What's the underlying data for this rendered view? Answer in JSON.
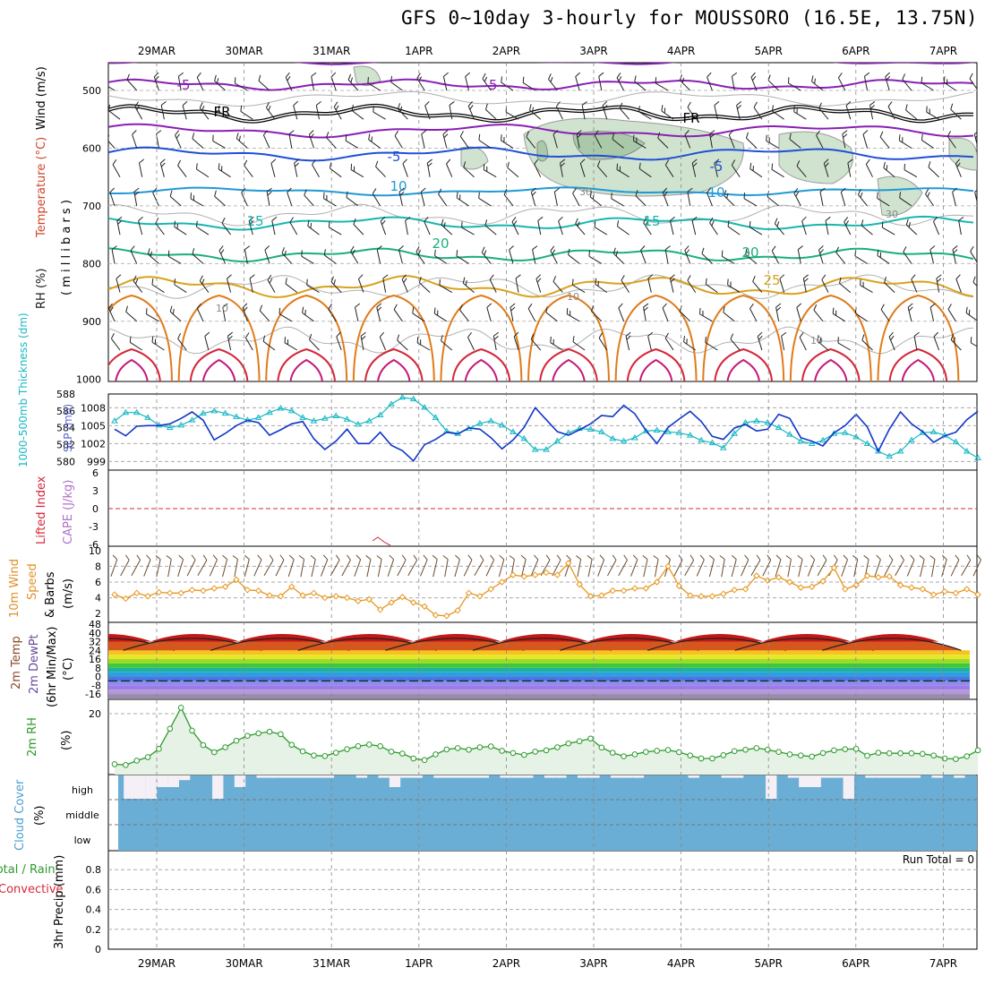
{
  "title": "GFS 0~10day 3-hourly for MOUSSORO (16.5E, 13.75N)",
  "dates": [
    "29MAR",
    "30MAR",
    "31MAR",
    "1APR",
    "2APR",
    "3APR",
    "4APR",
    "5APR",
    "6APR",
    "7APR"
  ],
  "colors": {
    "temp_purple": "#8a1fb5",
    "freezing": "#000000",
    "temp_blue": "#1f4fd6",
    "temp_lightblue": "#1f9ad6",
    "temp_cyan": "#18b6b0",
    "temp_green": "#18b07a",
    "temp_gold": "#d9a21c",
    "temp_orange": "#e07b1a",
    "temp_red": "#d4283a",
    "temp_magenta": "#c4187a",
    "rh_fill": "#cfe3cf",
    "thickness": "#17b8c4",
    "slp": "#1236c8",
    "wind_speed": "#e8961c",
    "barb": "#6b4a2a",
    "rh2m": "#2c9a2c",
    "cloud": "#6aaed6",
    "li": "#d4283a",
    "cape": "#b070c8"
  },
  "panels": {
    "upper_air": {
      "ylabel_rh": "RH (%)",
      "ylabel_temp": "Temperature (°C)",
      "ylabel_wind": "Wind (m/s)",
      "ylabel_unit": "( m i l l i b a r s )",
      "yticks": [
        500,
        600,
        700,
        800,
        900,
        1000
      ],
      "isotherm_labels": [
        {
          "text": "-5"
        },
        {
          "text": "-5"
        },
        {
          "text": "FR"
        },
        {
          "text": "FR"
        },
        {
          "text": "-5"
        },
        {
          "text": "-5"
        },
        {
          "text": "10"
        },
        {
          "text": "10"
        },
        {
          "text": "15"
        },
        {
          "text": "15"
        },
        {
          "text": "20"
        },
        {
          "text": "20"
        },
        {
          "text": "25"
        },
        {
          "text": "30"
        },
        {
          "text": "30"
        },
        {
          "text": "10"
        },
        {
          "text": "10"
        },
        {
          "text": "10"
        }
      ]
    },
    "thickness_slp": {
      "ylabel_left": "1000-500mb Thickness (dm)",
      "ylabel_right": "SLP (mb)",
      "left_ticks": [
        580,
        582,
        584,
        586,
        588
      ],
      "right_ticks": [
        999,
        1002,
        1005,
        1008
      ]
    },
    "stability": {
      "ylabel_li": "Lifted Index",
      "ylabel_cape": "CAPE (J/kg)",
      "ticks": [
        "6",
        "3",
        "0",
        "-3",
        "-6"
      ]
    },
    "wind10m": {
      "ylabel": "10m Wind Speed & Barbs (m/s)",
      "ylabel_a": "10m Wind",
      "ylabel_b": "Speed",
      "ylabel_c": "& Barbs",
      "ylabel_unit": "(m/s)",
      "ticks": [
        2,
        4,
        6,
        8,
        10
      ]
    },
    "temp2m": {
      "ylabel_a": "2m Temp",
      "ylabel_b": "2m DewPt",
      "ylabel_c": "(6hr Min/Max)",
      "ylabel_unit": "(°C)",
      "ticks": [
        "48",
        "40",
        "32",
        "24",
        "16",
        "8",
        "0",
        "-8",
        "-16"
      ]
    },
    "rh2m": {
      "ylabel": "2m RH",
      "ylabel_unit": "(%)",
      "ticks": [
        20
      ]
    },
    "cloud": {
      "ylabel": "Cloud Cover",
      "ylabel_unit": "(%)",
      "levels": [
        "high",
        "middle",
        "low"
      ]
    },
    "precip": {
      "ylabel_a": "Total / Rain",
      "ylabel_b": "Convective",
      "ylabel_c": "3hr Precip (mm)",
      "ticks": [
        "0",
        "0.2",
        "0.4",
        "0.6",
        "0.8"
      ],
      "run_total": "Run Total = 0"
    }
  },
  "chart_data": [
    {
      "type": "line",
      "title": "1000-500mb Thickness (dm) / SLP (mb)",
      "x": [
        "28MAR12",
        "28MAR15",
        "28MAR18",
        "28MAR21",
        "29MAR00",
        "29MAR03",
        "29MAR06",
        "29MAR09",
        "29MAR12",
        "29MAR15",
        "29MAR18",
        "29MAR21",
        "30MAR00",
        "30MAR03",
        "30MAR06",
        "30MAR09",
        "30MAR12",
        "30MAR15",
        "30MAR18",
        "30MAR21",
        "31MAR00",
        "31MAR03",
        "31MAR06",
        "31MAR09",
        "31MAR12",
        "31MAR15",
        "31MAR18",
        "31MAR21",
        "1APR00",
        "1APR03",
        "1APR06",
        "1APR09",
        "1APR12",
        "1APR15",
        "1APR18",
        "1APR21",
        "2APR00",
        "2APR03",
        "2APR06",
        "2APR09",
        "2APR12",
        "2APR15",
        "2APR18",
        "2APR21",
        "3APR00",
        "3APR03",
        "3APR06",
        "3APR09",
        "3APR12",
        "3APR15",
        "3APR18",
        "3APR21",
        "4APR00",
        "4APR03",
        "4APR06",
        "4APR09",
        "4APR12",
        "4APR15",
        "4APR18",
        "4APR21",
        "5APR00",
        "5APR03",
        "5APR06",
        "5APR09",
        "5APR12",
        "5APR15",
        "5APR18",
        "5APR21",
        "6APR00",
        "6APR03",
        "6APR06",
        "6APR09",
        "6APR12",
        "6APR15",
        "6APR18",
        "6APR21",
        "7APR00",
        "7APR03",
        "7APR06"
      ],
      "series": [
        {
          "name": "1000-500mb Thickness (dm)",
          "values": [
            584.8,
            585.8,
            585.8,
            585.2,
            584.3,
            584.0,
            584.3,
            584.9,
            585.7,
            586.0,
            585.7,
            585.3,
            584.9,
            585.2,
            585.8,
            586.3,
            586.0,
            585.2,
            584.8,
            585.1,
            585.4,
            585.0,
            584.4,
            584.8,
            585.5,
            586.8,
            587.6,
            587.4,
            586.4,
            585.2,
            583.6,
            583.3,
            583.9,
            584.5,
            584.8,
            584.3,
            583.5,
            582.7,
            581.4,
            581.4,
            582.4,
            583.4,
            583.9,
            583.8,
            583.5,
            582.7,
            582.4,
            582.8,
            583.6,
            583.7,
            583.5,
            583.4,
            583.1,
            582.5,
            582.2,
            581.6,
            583.3,
            584.6,
            584.8,
            584.6,
            584.0,
            583.2,
            582.4,
            582.1,
            582.5,
            583.3,
            583.4,
            582.9,
            582.1,
            581.2,
            580.6,
            581.2,
            582.5,
            583.4,
            583.5,
            583.1,
            582.3,
            581.2,
            580.4
          ]
        },
        {
          "name": "SLP (mb)",
          "values": [
            1004.4,
            1003.3,
            1004.9,
            1005.0,
            1005.0,
            1005.3,
            1006.2,
            1007.3,
            1005.9,
            1002.6,
            1003.7,
            1005.0,
            1005.9,
            1005.5,
            1003.4,
            1004.3,
            1005.3,
            1005.7,
            1002.8,
            1001.0,
            1002.4,
            1004.4,
            1002.0,
            1002.0,
            1003.9,
            1001.7,
            1000.8,
            999.1,
            1001.8,
            1002.7,
            1003.9,
            1003.6,
            1004.6,
            1004.4,
            1003.0,
            1001.1,
            1002.6,
            1004.7,
            1008.0,
            1006.0,
            1004.0,
            1003.4,
            1004.3,
            1005.3,
            1006.7,
            1006.5,
            1008.4,
            1007.0,
            1004.2,
            1002.0,
            1004.7,
            1006.1,
            1007.4,
            1005.7,
            1003.2,
            1002.7,
            1004.6,
            1005.2,
            1004.1,
            1004.4,
            1006.9,
            1006.2,
            1003.0,
            1002.4,
            1001.6,
            1003.8,
            1005.0,
            1006.9,
            1004.8,
            1000.7,
            1004.4,
            1007.3,
            1005.3,
            1004.0,
            1002.2,
            1003.3,
            1003.9,
            1006.0,
            1007.4
          ]
        }
      ]
    },
    {
      "type": "line",
      "title": "10m Wind Speed (m/s)",
      "series": [
        {
          "name": "10m Wind Speed",
          "values": [
            4.4,
            3.9,
            4.6,
            4.2,
            4.7,
            4.6,
            4.6,
            5.0,
            4.9,
            5.2,
            5.4,
            6.3,
            5.0,
            4.9,
            4.3,
            4.2,
            5.4,
            4.3,
            4.6,
            4.0,
            4.2,
            4.0,
            3.6,
            3.8,
            2.5,
            3.4,
            4.1,
            3.4,
            2.9,
            1.8,
            1.7,
            2.4,
            4.6,
            4.2,
            5.1,
            6.0,
            6.9,
            6.7,
            6.9,
            7.2,
            6.9,
            8.4,
            5.7,
            4.2,
            4.3,
            4.9,
            4.9,
            5.2,
            5.2,
            6.0,
            8.0,
            5.5,
            4.3,
            4.2,
            4.2,
            4.5,
            5.0,
            5.1,
            6.8,
            6.2,
            6.6,
            6.0,
            5.3,
            5.4,
            6.1,
            7.8,
            5.1,
            5.6,
            6.8,
            6.6,
            6.7,
            5.6,
            5.3,
            5.1,
            4.4,
            4.8,
            4.6,
            5.1,
            4.4
          ]
        }
      ]
    },
    {
      "type": "area",
      "title": "2m RH (%)",
      "series": [
        {
          "name": "2m RH",
          "values": [
            1.5,
            1.2,
            2.8,
            4.1,
            7.1,
            14.5,
            22.2,
            13.8,
            8.5,
            5.9,
            7.7,
            10.1,
            11.9,
            12.8,
            13.4,
            12.5,
            8.6,
            6.2,
            4.7,
            4.5,
            5.7,
            7.0,
            8.1,
            8.7,
            8.1,
            6.1,
            5.4,
            3.6,
            3.0,
            5.1,
            6.9,
            7.4,
            6.8,
            7.7,
            8.0,
            6.4,
            5.6,
            4.9,
            6.1,
            6.6,
            7.7,
            9.1,
            9.9,
            10.9,
            7.6,
            5.7,
            4.4,
            5.1,
            6.0,
            6.4,
            6.7,
            5.9,
            4.7,
            3.6,
            3.6,
            4.8,
            6.3,
            6.8,
            7.4,
            6.8,
            6.0,
            5.1,
            4.7,
            4.3,
            5.6,
            6.6,
            7.0,
            7.1,
            4.6,
            5.7,
            5.5,
            5.5,
            5.5,
            5.3,
            4.7,
            3.6,
            3.4,
            4.4,
            6.6
          ]
        }
      ]
    },
    {
      "type": "bar",
      "title": "Cloud Cover (%) high",
      "series": [
        {
          "name": "high cloud",
          "values": [
            0,
            50,
            50,
            50,
            25,
            25,
            10,
            0,
            0,
            50,
            0,
            25,
            0,
            5,
            5,
            5,
            5,
            5,
            5,
            5,
            0,
            0,
            5,
            0,
            5,
            25,
            5,
            5,
            0,
            5,
            5,
            5,
            5,
            5,
            0,
            5,
            5,
            5,
            0,
            5,
            5,
            0,
            5,
            5,
            0,
            5,
            5,
            5,
            0,
            0,
            0,
            0,
            5,
            0,
            0,
            5,
            5,
            0,
            0,
            50,
            0,
            5,
            25,
            25,
            5,
            5,
            50,
            0,
            5,
            5,
            5,
            5,
            5,
            0,
            5,
            0,
            5,
            0,
            0
          ]
        }
      ]
    },
    {
      "type": "line",
      "title": "3hr Precip (mm)",
      "series": [
        {
          "name": "Total / Rain",
          "values": [
            0,
            0,
            0,
            0,
            0,
            0,
            0,
            0,
            0,
            0
          ]
        }
      ]
    }
  ]
}
